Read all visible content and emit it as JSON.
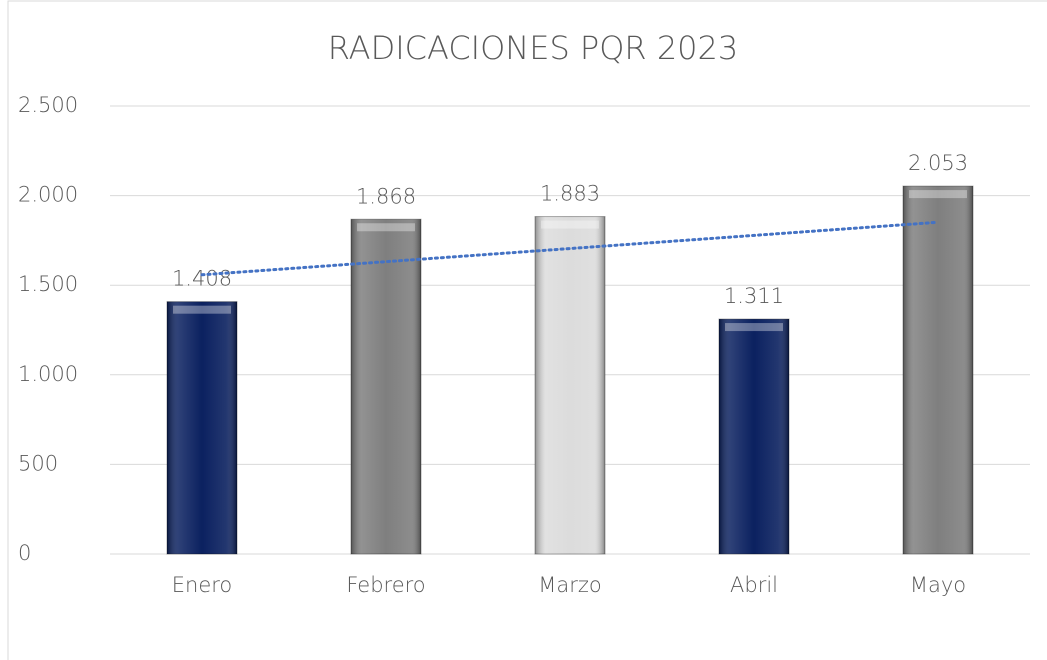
{
  "chart_data": {
    "type": "bar",
    "title": "RADICACIONES PQR 2023",
    "categories": [
      "Enero",
      "Febrero",
      "Marzo",
      "Abril",
      "Mayo"
    ],
    "values": [
      1408,
      1868,
      1883,
      1311,
      2053
    ],
    "value_labels": [
      "1.408",
      "1.868",
      "1.883",
      "1.311",
      "2.053"
    ],
    "colors": [
      "#0b2160",
      "#7f7f7f",
      "#dcdcdc",
      "#0b2160",
      "#7f7f7f"
    ],
    "ylim": [
      0,
      2500
    ],
    "yticks": [
      0,
      {
        "value": 500,
        "label": "500"
      },
      {
        "value": 1000,
        "label": "1.000"
      },
      {
        "value": 1500,
        "label": "1.500"
      },
      {
        "value": 2000,
        "label": "2.000"
      },
      {
        "value": 2500,
        "label": "2.500"
      }
    ],
    "grid": true,
    "trendline": {
      "type": "linear",
      "color": "#4472c4"
    }
  }
}
